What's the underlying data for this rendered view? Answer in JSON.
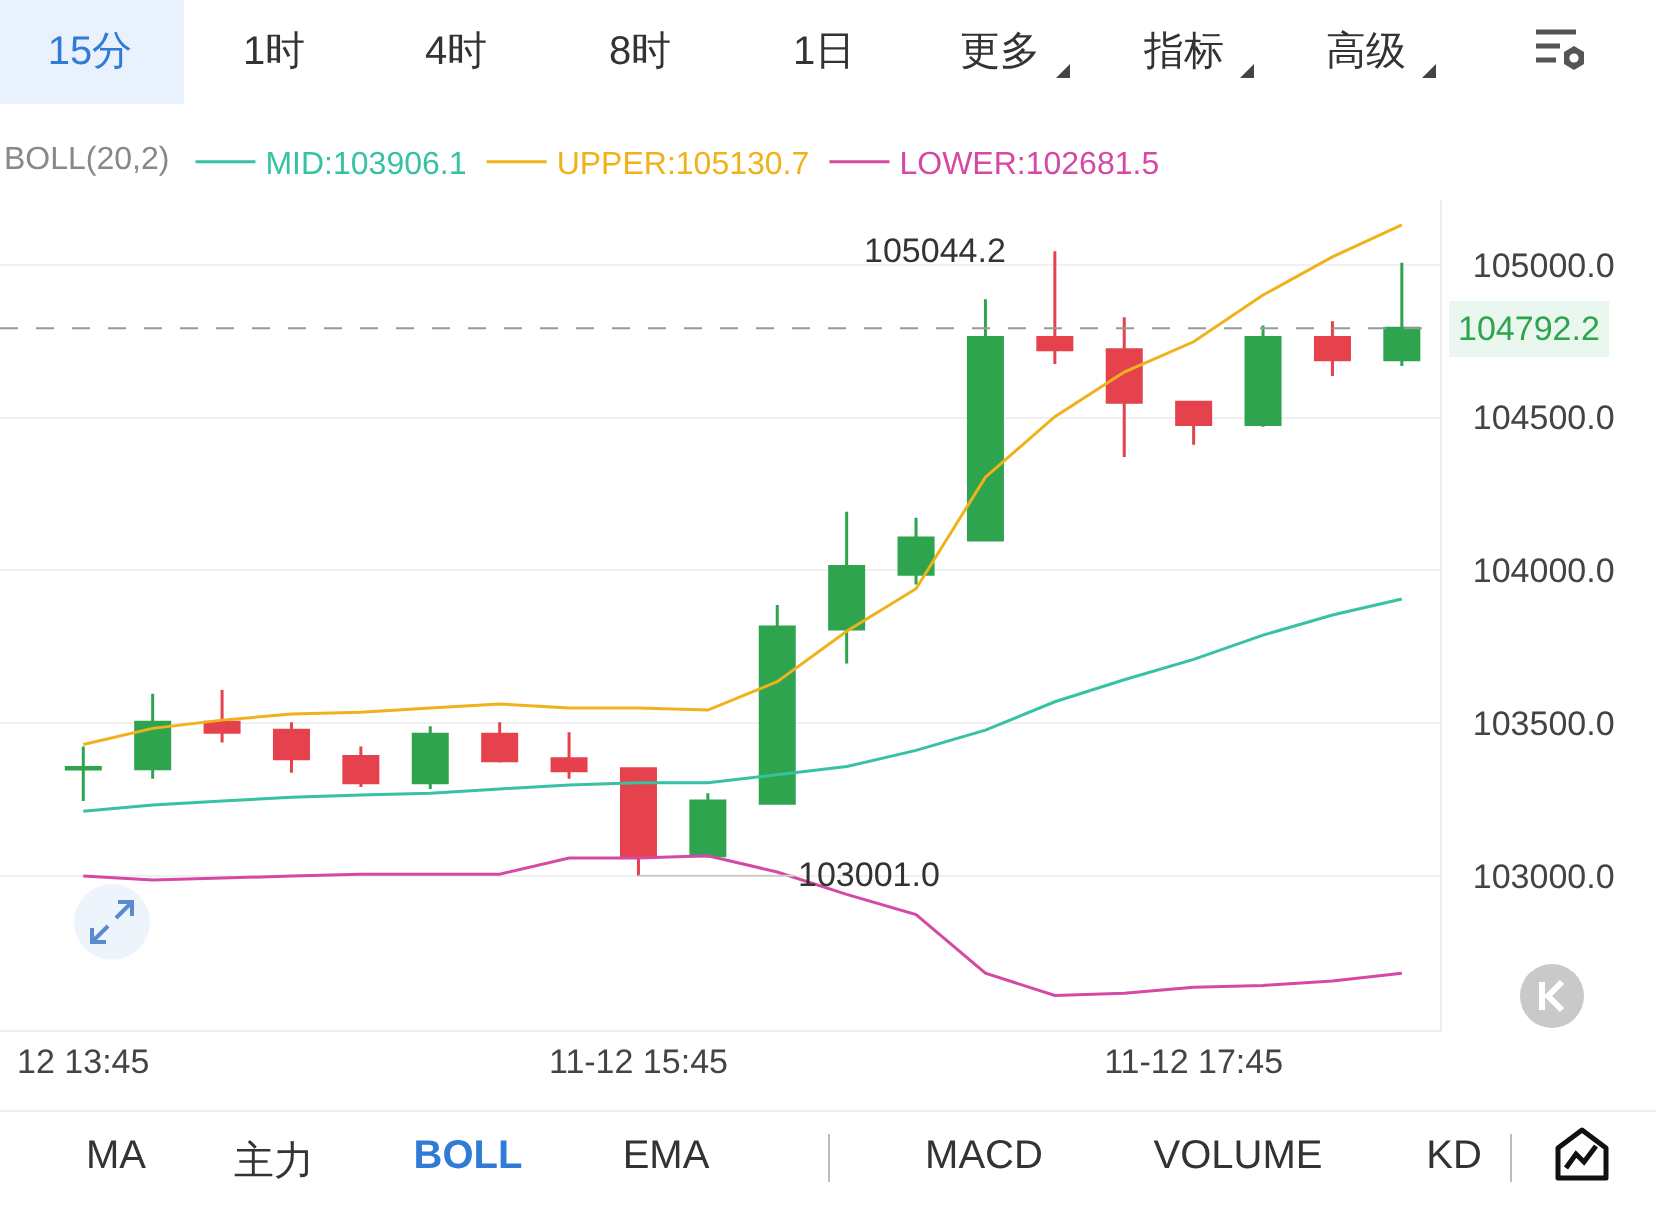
{
  "chart_data": {
    "type": "candlestick",
    "legend_title": "BOLL(20,2)",
    "legend": "top left",
    "grid": "y",
    "categories": [
      "12 13:45",
      null,
      null,
      null,
      null,
      null,
      null,
      null,
      "11-12 15:45",
      null,
      null,
      null,
      null,
      null,
      null,
      null,
      "11-12 17:45",
      null,
      null,
      null
    ],
    "ohlc": [
      [
        103350,
        103424,
        103245,
        103355
      ],
      [
        103351,
        103596,
        103318,
        103503
      ],
      [
        103503,
        103609,
        103437,
        103470
      ],
      [
        103477,
        103503,
        103338,
        103384
      ],
      [
        103391,
        103424,
        103291,
        103305
      ],
      [
        103305,
        103490,
        103285,
        103464
      ],
      [
        103464,
        103503,
        103371,
        103377
      ],
      [
        103384,
        103470,
        103318,
        103344
      ],
      [
        103351,
        103351,
        103001.0,
        103066
      ],
      [
        103066,
        103271,
        103060,
        103245
      ],
      [
        103238,
        103887,
        103238,
        103815
      ],
      [
        103808,
        104192,
        103695,
        104013
      ],
      [
        103987,
        104172,
        103954,
        104106
      ],
      [
        104099,
        104887,
        104099,
        104762
      ],
      [
        104762,
        105044.2,
        104675,
        104722
      ],
      [
        104722,
        104828,
        104371,
        104550
      ],
      [
        104550,
        104550,
        104411,
        104477
      ],
      [
        104477,
        104801,
        104470,
        104762
      ],
      [
        104762,
        104815,
        104636,
        104689
      ],
      [
        104689,
        105007,
        104669,
        104792.2
      ]
    ],
    "colors": [
      "#2ea44f",
      "#2ea44f",
      "#e5424d",
      "#e5424d",
      "#e5424d",
      "#2ea44f",
      "#e5424d",
      "#e5424d",
      "#e5424d",
      "#2ea44f",
      "#2ea44f",
      "#2ea44f",
      "#2ea44f",
      "#2ea44f",
      "#e5424d",
      "#e5424d",
      "#e5424d",
      "#2ea44f",
      "#e5424d",
      "#2ea44f"
    ],
    "series": [
      {
        "type": "line",
        "name": "MID:103906.1",
        "color": "#36c2a3",
        "values": [
          103212,
          103232,
          103245,
          103258,
          103265,
          103271,
          103285,
          103298,
          103305,
          103305,
          103331,
          103358,
          103411,
          103477,
          103570,
          103642,
          103709,
          103788,
          103854,
          103906.1
        ]
      },
      {
        "type": "line",
        "name": "UPPER:105130.7",
        "color": "#f0b21a",
        "values": [
          103430,
          103483,
          103510,
          103530,
          103536,
          103550,
          103563,
          103550,
          103550,
          103543,
          103636,
          103801,
          103940,
          104305,
          104503,
          104649,
          104748,
          104901,
          105026,
          105130.7
        ]
      },
      {
        "type": "line",
        "name": "LOWER:102681.5",
        "color": "#d548a3",
        "values": [
          103000,
          102987,
          102993,
          103000,
          103006,
          103006,
          103006,
          103059,
          103059,
          103066,
          103013,
          102940,
          102874,
          102682,
          102609,
          102616,
          102636,
          102642,
          102656,
          102681.5
        ]
      }
    ],
    "ylim": [
      102496,
      105212
    ],
    "yticks": [
      {
        "value": 103000,
        "label": "103000.0"
      },
      {
        "value": 103500,
        "label": "103500.0"
      },
      {
        "value": 104000,
        "label": "104000.0"
      },
      {
        "value": 104500,
        "label": "104500.0"
      },
      {
        "value": 105000,
        "label": "105000.0"
      }
    ],
    "ref_lines": [
      {
        "axis": "y",
        "value": 104792.2,
        "label": "104792.2",
        "color": "#999999",
        "line_style": "dashed"
      }
    ],
    "annotations": [
      "15分",
      "1时",
      "4时",
      "8时",
      "1日",
      "更多",
      "指标",
      "高级",
      "MA",
      "主力",
      "BOLL",
      "EMA",
      "MACD",
      "VOLUME",
      "KD",
      "105044.2",
      {
        "text": "103001.0",
        "x": "11-12 15:45",
        "y": 103001.0
      }
    ]
  }
}
